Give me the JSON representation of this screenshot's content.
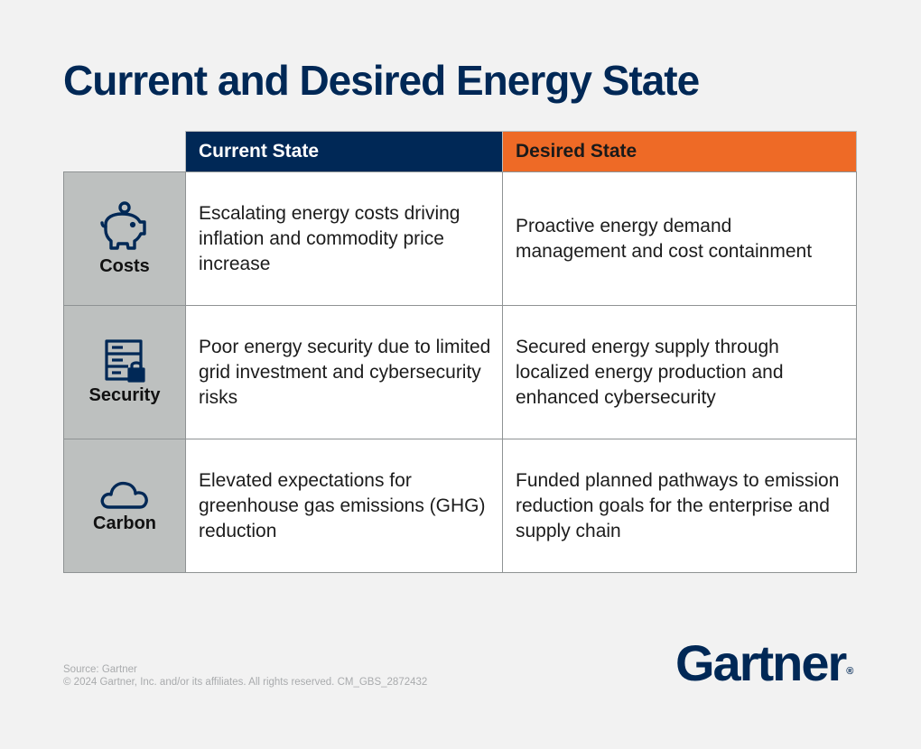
{
  "title": "Current and Desired Energy State",
  "headers": {
    "current": "Current State",
    "desired": "Desired State"
  },
  "rows": [
    {
      "label": "Costs",
      "icon": "piggy-bank-icon",
      "current": "Escalating energy costs driving inflation and commodity price increase",
      "desired": "Proactive energy demand management and cost containment"
    },
    {
      "label": "Security",
      "icon": "server-lock-icon",
      "current": "Poor energy security due to limited grid investment and cybersecurity risks",
      "desired": "Secured energy supply through localized energy production and enhanced cybersecurity"
    },
    {
      "label": "Carbon",
      "icon": "cloud-icon",
      "current": "Elevated expectations for greenhouse gas emissions (GHG) reduction",
      "desired": "Funded planned pathways to emission reduction goals for the enterprise and supply chain"
    }
  ],
  "footer": {
    "source": "Source: Gartner",
    "copyright": "© 2024 Gartner, Inc. and/or its affiliates. All rights reserved. CM_GBS_2872432"
  },
  "logo": "Gartner",
  "colors": {
    "navy": "#002856",
    "orange": "#ee6a26",
    "label_bg": "#bdc0bf",
    "page_bg": "#f2f2f2"
  }
}
